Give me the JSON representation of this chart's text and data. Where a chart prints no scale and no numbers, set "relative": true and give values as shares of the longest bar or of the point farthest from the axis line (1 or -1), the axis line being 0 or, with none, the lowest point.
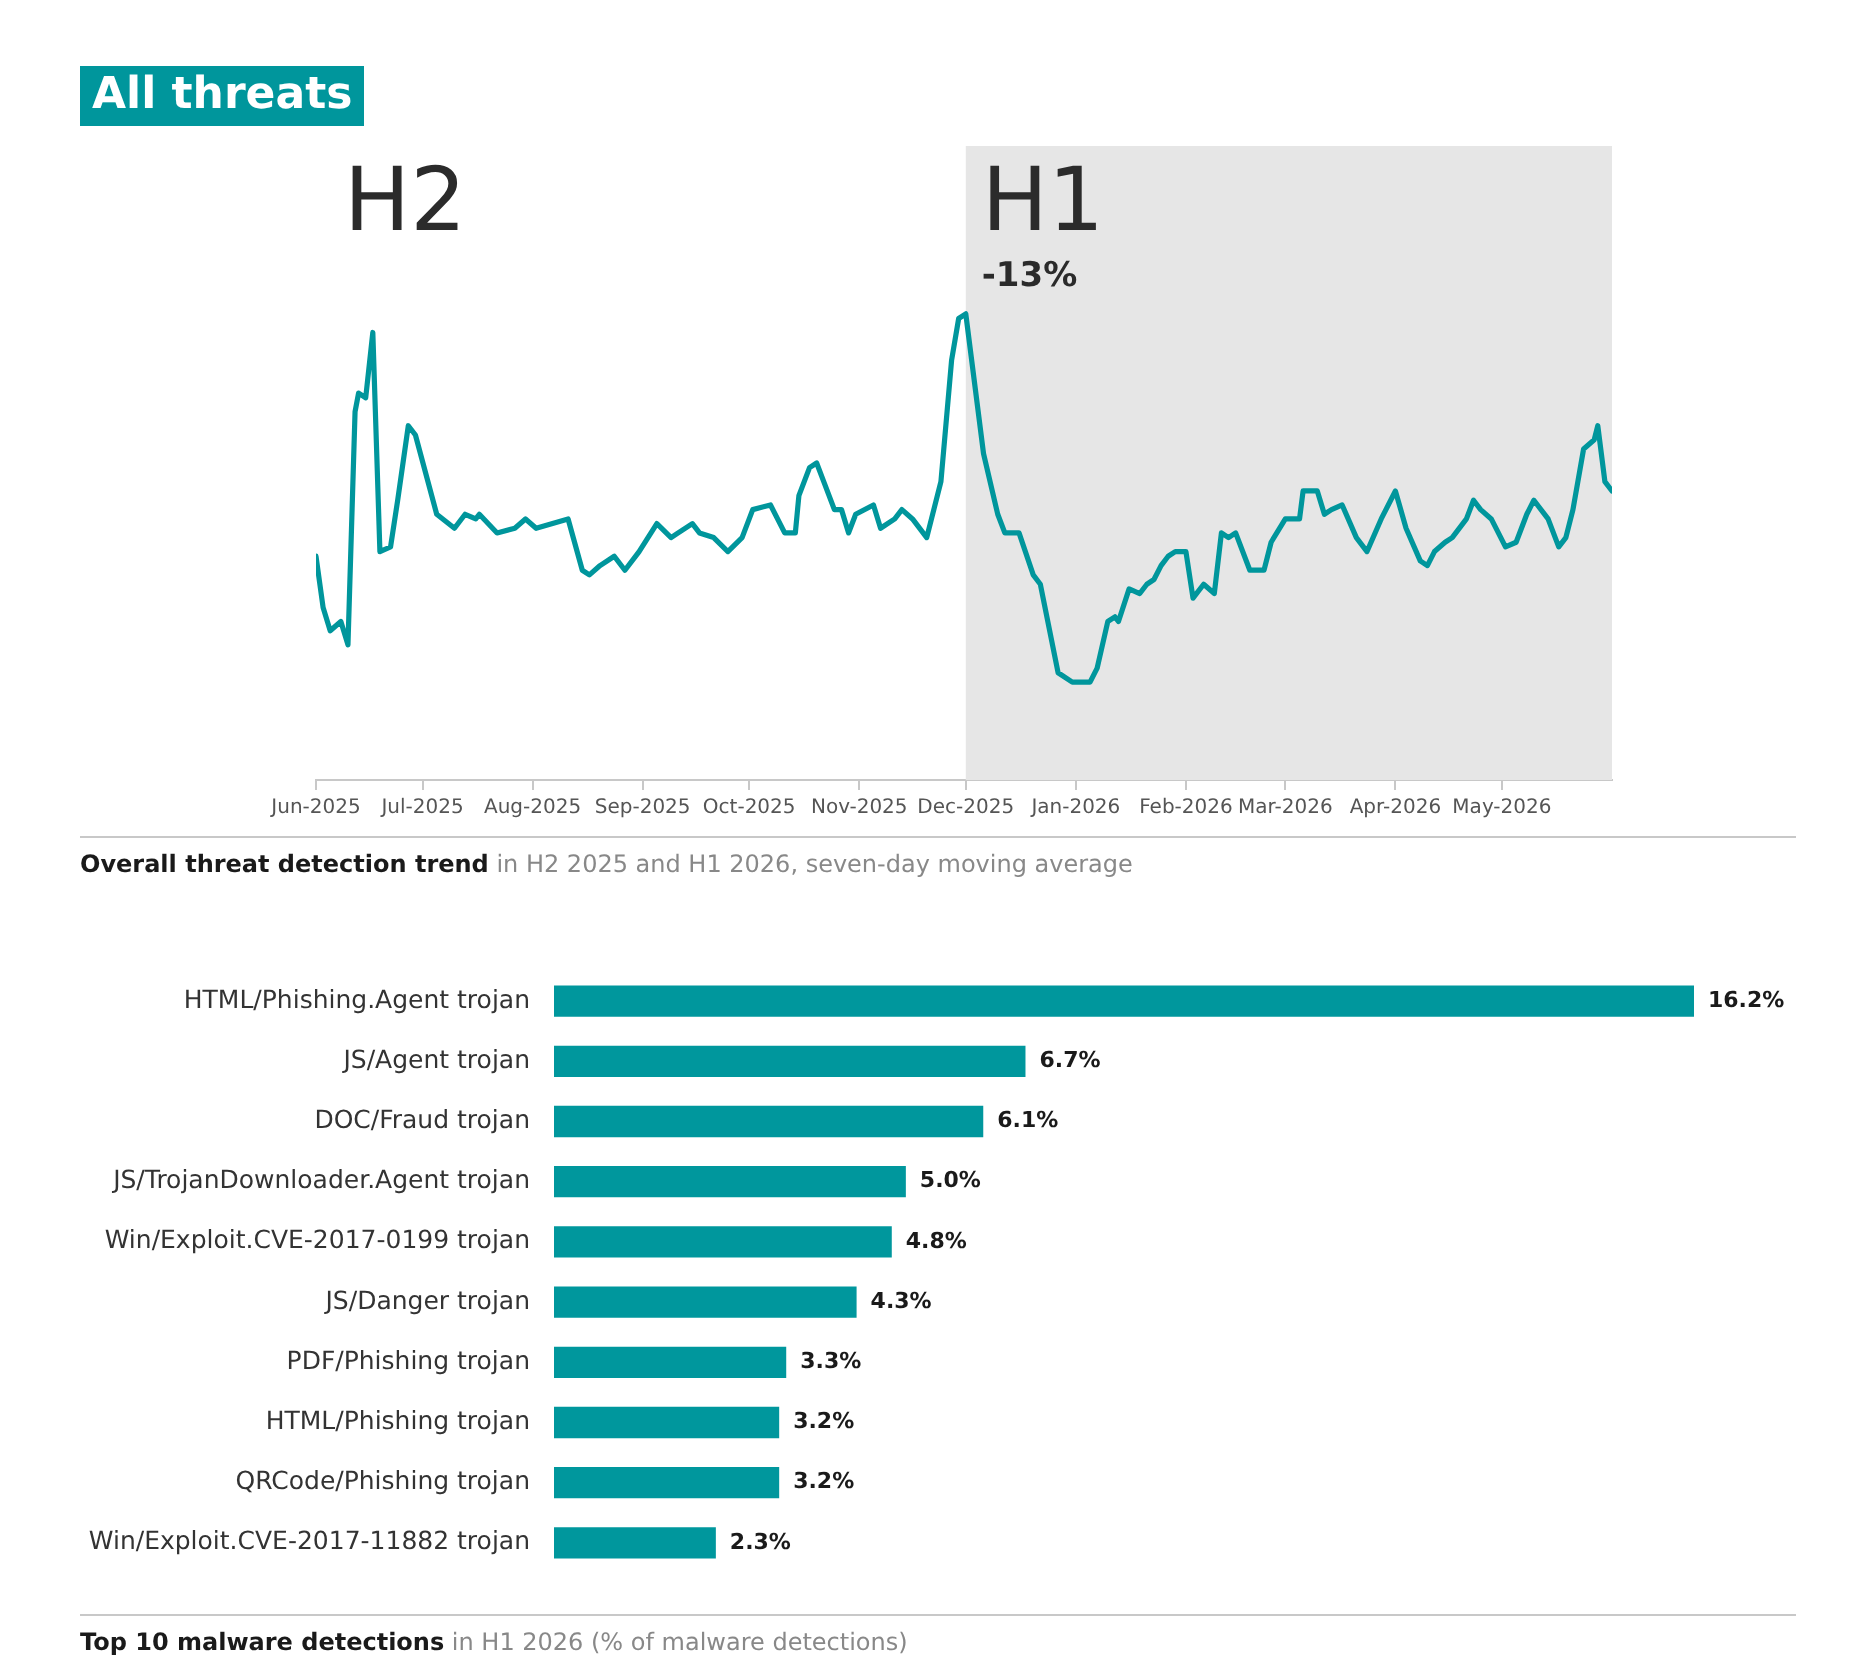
{
  "chart_data": [
    {
      "type": "line",
      "title": "Overall threat detection trend",
      "subtitle": "in H2 2025 and H1 2026, seven-day moving average",
      "relative": true,
      "tick_labels": "x",
      "color": "#00969c",
      "annotations": [
        "All threats",
        "H2",
        "-13%"
      ],
      "bands": [
        {
          "axis": "x",
          "from": "2025-12-01",
          "to": "2026-06-01",
          "label": "H1",
          "color": "#e6e6e6"
        }
      ],
      "xlim": [
        "2025-06-01",
        "2026-06-01"
      ],
      "xticks": [
        {
          "value": "2025-06-01",
          "label": "Jun-2025"
        },
        {
          "value": "2025-07-01",
          "label": "Jul-2025"
        },
        {
          "value": "2025-08-01",
          "label": "Aug-2025"
        },
        {
          "value": "2025-09-01",
          "label": "Sep-2025"
        },
        {
          "value": "2025-10-01",
          "label": "Oct-2025"
        },
        {
          "value": "2025-11-01",
          "label": "Nov-2025"
        },
        {
          "value": "2025-12-01",
          "label": "Dec-2025"
        },
        {
          "value": "2026-01-01",
          "label": "Jan-2026"
        },
        {
          "value": "2026-02-01",
          "label": "Feb-2026"
        },
        {
          "value": "2026-03-01",
          "label": "Mar-2026"
        },
        {
          "value": "2026-04-01",
          "label": "Apr-2026"
        },
        {
          "value": "2026-05-01",
          "label": "May-2026"
        }
      ],
      "x": [
        "2025-06-01",
        "2025-06-03",
        "2025-06-05",
        "2025-06-08",
        "2025-06-10",
        "2025-06-12",
        "2025-06-13",
        "2025-06-15",
        "2025-06-17",
        "2025-06-19",
        "2025-06-22",
        "2025-06-24",
        "2025-06-27",
        "2025-06-29",
        "2025-07-05",
        "2025-07-10",
        "2025-07-13",
        "2025-07-16",
        "2025-07-17",
        "2025-07-22",
        "2025-07-27",
        "2025-07-30",
        "2025-08-02",
        "2025-08-11",
        "2025-08-15",
        "2025-08-17",
        "2025-08-20",
        "2025-08-24",
        "2025-08-27",
        "2025-08-31",
        "2025-09-05",
        "2025-09-09",
        "2025-09-11",
        "2025-09-15",
        "2025-09-17",
        "2025-09-21",
        "2025-09-25",
        "2025-09-29",
        "2025-10-02",
        "2025-10-07",
        "2025-10-11",
        "2025-10-14",
        "2025-10-15",
        "2025-10-18",
        "2025-10-20",
        "2025-10-22",
        "2025-10-25",
        "2025-10-27",
        "2025-10-29",
        "2025-10-31",
        "2025-11-05",
        "2025-11-07",
        "2025-11-11",
        "2025-11-13",
        "2025-11-16",
        "2025-11-20",
        "2025-11-24",
        "2025-11-27",
        "2025-11-29",
        "2025-12-01",
        "2025-12-06",
        "2025-12-10",
        "2025-12-12",
        "2025-12-16",
        "2025-12-20",
        "2025-12-22",
        "2025-12-27",
        "2025-12-31",
        "2026-01-05",
        "2026-01-07",
        "2026-01-10",
        "2026-01-12",
        "2026-01-13",
        "2026-01-16",
        "2026-01-19",
        "2026-01-21",
        "2026-01-23",
        "2026-01-25",
        "2026-01-27",
        "2026-01-29",
        "2026-02-01",
        "2026-02-03",
        "2026-02-06",
        "2026-02-09",
        "2026-02-11",
        "2026-02-13",
        "2026-02-15",
        "2026-02-19",
        "2026-02-23",
        "2026-02-25",
        "2026-03-01",
        "2026-03-05",
        "2026-03-06",
        "2026-03-10",
        "2026-03-12",
        "2026-03-14",
        "2026-03-17",
        "2026-03-21",
        "2026-03-24",
        "2026-03-28",
        "2026-04-01",
        "2026-04-04",
        "2026-04-08",
        "2026-04-10",
        "2026-04-12",
        "2026-04-15",
        "2026-04-17",
        "2026-04-21",
        "2026-04-23",
        "2026-04-25",
        "2026-04-28",
        "2026-05-02",
        "2026-05-05",
        "2026-05-08",
        "2026-05-10",
        "2026-05-14",
        "2026-05-17",
        "2026-05-19",
        "2026-05-21",
        "2026-05-24",
        "2026-05-27",
        "2026-05-28",
        "2026-05-30",
        "2026-06-01"
      ],
      "values": [
        0.48,
        0.37,
        0.32,
        0.34,
        0.29,
        0.79,
        0.83,
        0.82,
        0.96,
        0.49,
        0.5,
        0.6,
        0.76,
        0.74,
        0.57,
        0.54,
        0.57,
        0.56,
        0.57,
        0.53,
        0.54,
        0.56,
        0.54,
        0.56,
        0.45,
        0.44,
        0.46,
        0.48,
        0.45,
        0.49,
        0.55,
        0.52,
        0.53,
        0.55,
        0.53,
        0.52,
        0.49,
        0.52,
        0.58,
        0.59,
        0.53,
        0.53,
        0.61,
        0.67,
        0.68,
        0.64,
        0.58,
        0.58,
        0.53,
        0.57,
        0.59,
        0.54,
        0.56,
        0.58,
        0.56,
        0.52,
        0.64,
        0.9,
        0.99,
        1,
        0.7,
        0.57,
        0.53,
        0.53,
        0.44,
        0.42,
        0.23,
        0.21,
        0.21,
        0.24,
        0.34,
        0.35,
        0.34,
        0.41,
        0.4,
        0.42,
        0.43,
        0.46,
        0.48,
        0.49,
        0.49,
        0.39,
        0.42,
        0.4,
        0.53,
        0.52,
        0.53,
        0.45,
        0.45,
        0.51,
        0.56,
        0.56,
        0.62,
        0.62,
        0.57,
        0.58,
        0.59,
        0.52,
        0.49,
        0.56,
        0.62,
        0.54,
        0.47,
        0.46,
        0.49,
        0.51,
        0.52,
        0.56,
        0.6,
        0.58,
        0.56,
        0.5,
        0.51,
        0.57,
        0.6,
        0.56,
        0.5,
        0.52,
        0.58,
        0.71,
        0.73,
        0.76,
        0.64,
        0.62
      ]
    },
    {
      "type": "bar",
      "orientation": "horizontal",
      "title": "Top 10 malware detections",
      "subtitle": "in H1 2026 (% of malware detections)",
      "tick_labels": "y",
      "color": "#00979d",
      "categories": [
        "HTML/Phishing.Agent trojan",
        "JS/Agent trojan",
        "DOC/Fraud trojan",
        "JS/TrojanDownloader.Agent trojan",
        "Win/Exploit.CVE-2017-0199 trojan",
        "JS/Danger trojan",
        "PDF/Phishing trojan",
        "HTML/Phishing trojan",
        "QRCode/Phishing trojan",
        "Win/Exploit.CVE-2017-11882 trojan"
      ],
      "values": [
        16.2,
        6.7,
        6.1,
        5.0,
        4.8,
        4.3,
        3.3,
        3.2,
        3.2,
        2.3
      ],
      "value_labels": [
        "16.2%",
        "6.7%",
        "6.1%",
        "5.0%",
        "4.8%",
        "4.3%",
        "3.3%",
        "3.2%",
        "3.2%",
        "2.3%"
      ],
      "xlim": [
        0,
        16.2
      ]
    }
  ]
}
